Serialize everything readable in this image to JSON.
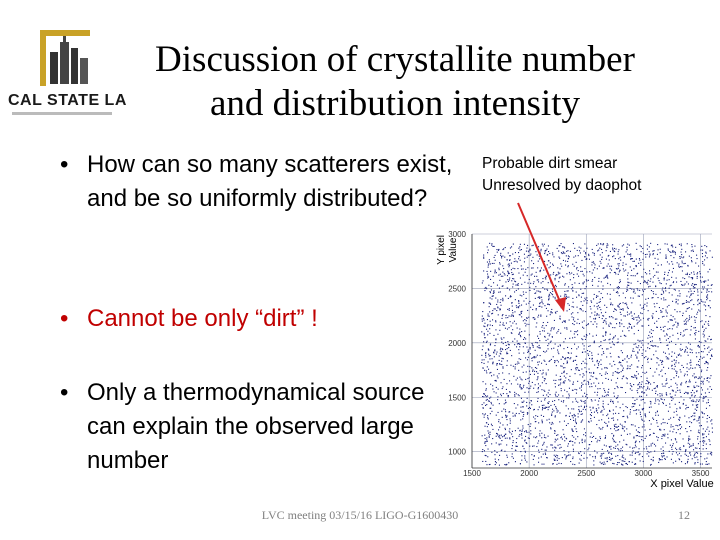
{
  "logo": {
    "text": "CAL STATE LA"
  },
  "title": {
    "line1": "Discussion of crystallite number",
    "line2": "and distribution intensity"
  },
  "bullets": [
    {
      "mark": "•",
      "text": "How  can so many scatterers exist, and be so uniformly distributed?"
    },
    {
      "mark": "•",
      "text": "Cannot be only “dirt”  !"
    },
    {
      "mark": "•",
      "text": "Only a thermodynamical source can explain the observed large number"
    }
  ],
  "annotation": {
    "line1": "Probable dirt smear",
    "line2": "Unresolved by daophot"
  },
  "footer": {
    "text": "LVC meeting 03/15/16 LIGO-G1600430",
    "page": "12"
  },
  "colors": {
    "accent_red": "#c00000",
    "points": "#1a237e",
    "arrow": "#d62828",
    "logo_gold": "#c9a227"
  },
  "chart_data": {
    "type": "scatter",
    "xlabel": "X pixel Value",
    "ylabel": "Y pixel Value",
    "xticks": [
      1500,
      2000,
      2500,
      3000,
      3500
    ],
    "yticks": [
      1000,
      1500,
      2000,
      2500,
      3000
    ],
    "xlim": [
      1500,
      3600
    ],
    "ylim": [
      850,
      3000
    ],
    "grid": true,
    "description_points": "dense uniform scatter of thousands of small dots",
    "x_range_points": [
      1580,
      3600
    ],
    "y_range_points": [
      880,
      2920
    ]
  }
}
